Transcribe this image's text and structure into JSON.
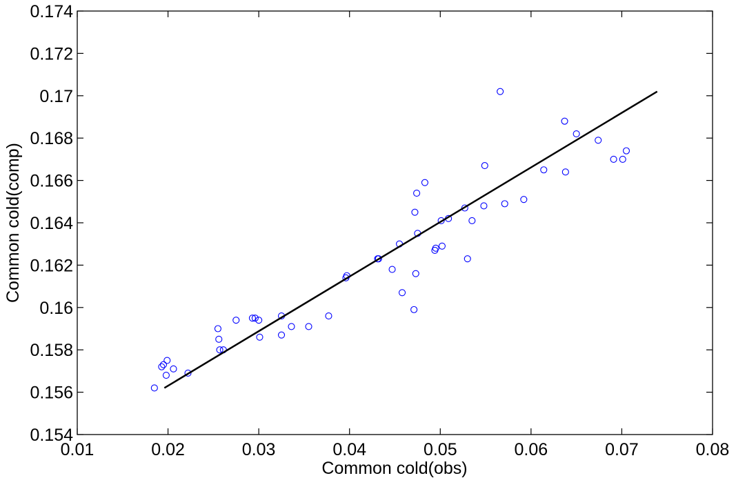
{
  "chart_data": {
    "type": "scatter",
    "xlabel": "Common cold(obs)",
    "ylabel": "Common cold(comp)",
    "xlim": [
      0.01,
      0.08
    ],
    "ylim": [
      0.154,
      0.174
    ],
    "x_ticks": [
      0.01,
      0.02,
      0.03,
      0.04,
      0.05,
      0.06,
      0.07,
      0.08
    ],
    "y_ticks": [
      0.154,
      0.156,
      0.158,
      0.16,
      0.162,
      0.164,
      0.166,
      0.168,
      0.17,
      0.172,
      0.174
    ],
    "x_tick_labels": [
      "0.01",
      "0.02",
      "0.03",
      "0.04",
      "0.05",
      "0.06",
      "0.07",
      "0.08"
    ],
    "y_tick_labels": [
      "0.154",
      "0.156",
      "0.158",
      "0.16",
      "0.162",
      "0.164",
      "0.166",
      "0.168",
      "0.17",
      "0.172",
      "0.174"
    ],
    "grid": false,
    "marker_color": "#0000ff",
    "line_color": "#000000",
    "series": [
      {
        "kind": "points",
        "points": [
          [
            0.0185,
            0.1562
          ],
          [
            0.0193,
            0.1572
          ],
          [
            0.0195,
            0.1573
          ],
          [
            0.0198,
            0.1568
          ],
          [
            0.0199,
            0.1575
          ],
          [
            0.0206,
            0.1571
          ],
          [
            0.0222,
            0.1569
          ],
          [
            0.0255,
            0.159
          ],
          [
            0.0256,
            0.1585
          ],
          [
            0.0257,
            0.158
          ],
          [
            0.0261,
            0.158
          ],
          [
            0.0275,
            0.1594
          ],
          [
            0.0293,
            0.1595
          ],
          [
            0.0296,
            0.1595
          ],
          [
            0.03,
            0.1594
          ],
          [
            0.0301,
            0.1586
          ],
          [
            0.0325,
            0.1596
          ],
          [
            0.0325,
            0.1587
          ],
          [
            0.0336,
            0.1591
          ],
          [
            0.0355,
            0.1591
          ],
          [
            0.0377,
            0.1596
          ],
          [
            0.0396,
            0.1614
          ],
          [
            0.0397,
            0.1615
          ],
          [
            0.0431,
            0.1623
          ],
          [
            0.0432,
            0.1623
          ],
          [
            0.0447,
            0.1618
          ],
          [
            0.0455,
            0.163
          ],
          [
            0.0458,
            0.1607
          ],
          [
            0.0471,
            0.1599
          ],
          [
            0.0472,
            0.1645
          ],
          [
            0.0473,
            0.1616
          ],
          [
            0.0474,
            0.1654
          ],
          [
            0.0475,
            0.1635
          ],
          [
            0.0483,
            0.1659
          ],
          [
            0.0494,
            0.1627
          ],
          [
            0.0495,
            0.1628
          ],
          [
            0.0501,
            0.1641
          ],
          [
            0.0502,
            0.1629
          ],
          [
            0.0509,
            0.1642
          ],
          [
            0.0527,
            0.1647
          ],
          [
            0.053,
            0.1623
          ],
          [
            0.0535,
            0.1641
          ],
          [
            0.0548,
            0.1648
          ],
          [
            0.0549,
            0.1667
          ],
          [
            0.0566,
            0.1702
          ],
          [
            0.0571,
            0.1649
          ],
          [
            0.0592,
            0.1651
          ],
          [
            0.0614,
            0.1665
          ],
          [
            0.0637,
            0.1688
          ],
          [
            0.0638,
            0.1664
          ],
          [
            0.065,
            0.1682
          ],
          [
            0.0674,
            0.1679
          ],
          [
            0.0691,
            0.167
          ],
          [
            0.0701,
            0.167
          ],
          [
            0.0705,
            0.1674
          ]
        ]
      },
      {
        "kind": "fit-line",
        "points": [
          [
            0.0196,
            0.1562
          ],
          [
            0.0739,
            0.1702
          ]
        ]
      }
    ]
  }
}
